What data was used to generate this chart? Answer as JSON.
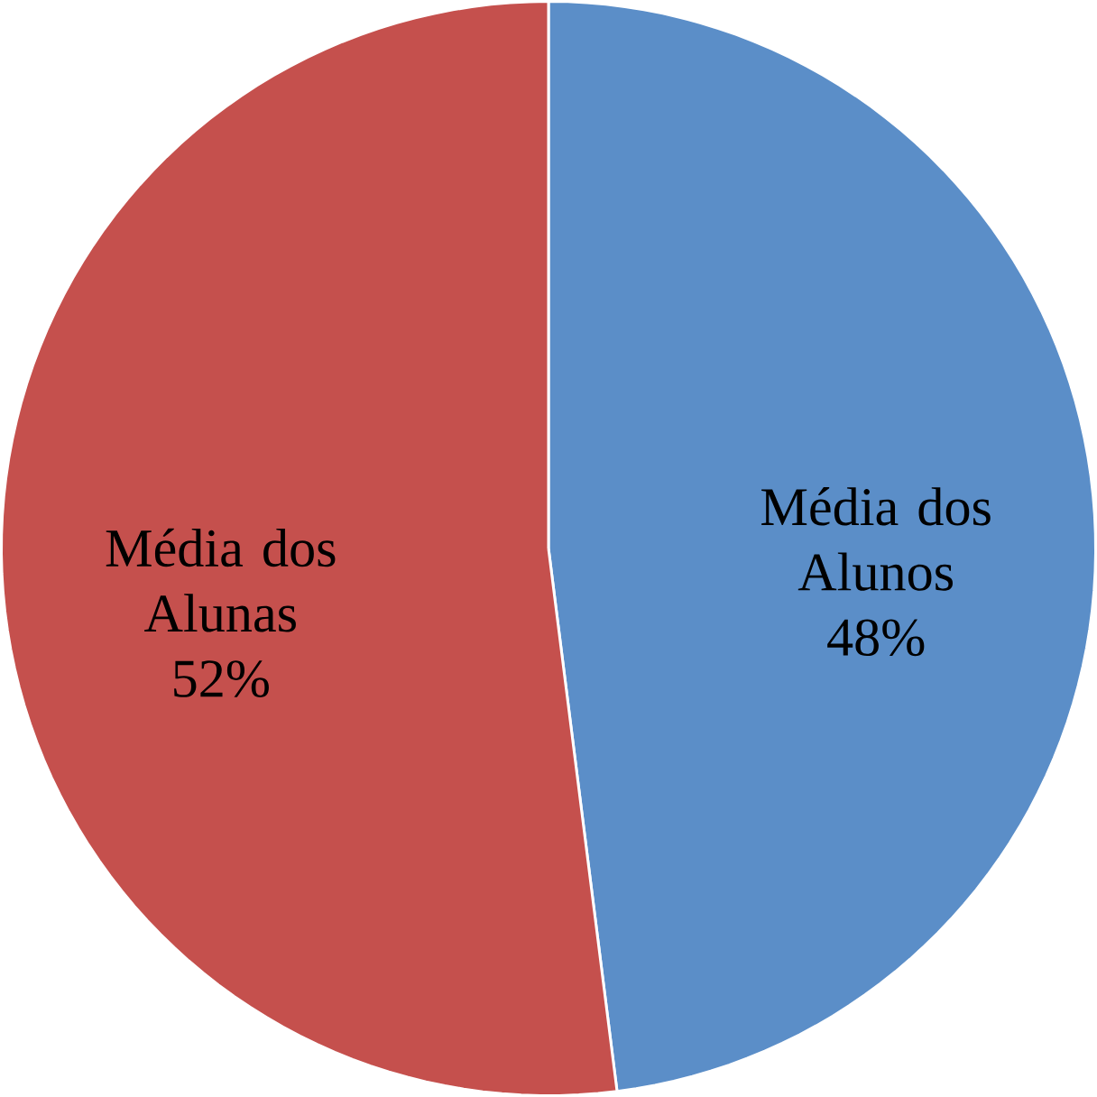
{
  "chart_data": {
    "type": "pie",
    "categories": [
      "Média dos Alunos",
      "Média dos Alunas"
    ],
    "values": [
      48,
      52
    ],
    "colors": [
      "#5b8ec8",
      "#c5504d"
    ],
    "value_labels": [
      "48%",
      "52%"
    ]
  }
}
